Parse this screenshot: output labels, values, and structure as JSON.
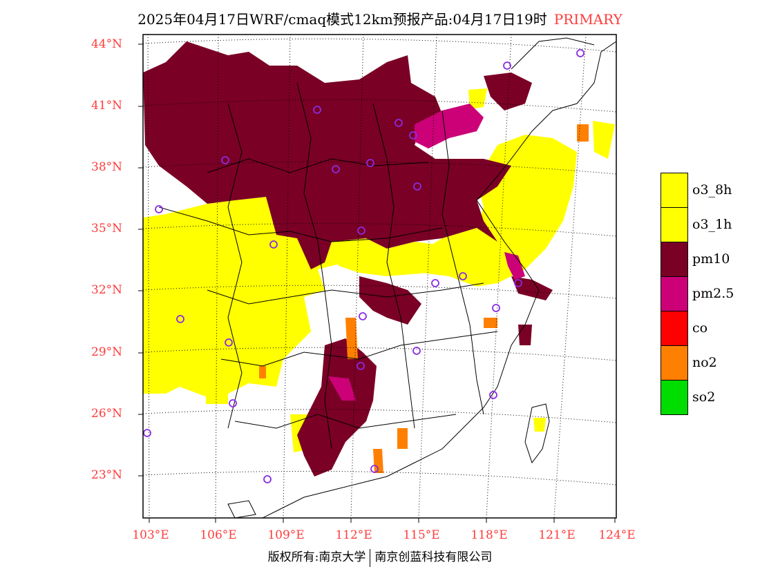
{
  "title": "2025年04月17日WRF/cmaq模式12km预报产品:04月17日19时",
  "title_tag": "PRIMARY",
  "colors": {
    "label_red": "#ff3b3b",
    "o3_8h": "#ffff00",
    "o3_1h": "#ffff00",
    "pm10": "#7a0026",
    "pm2_5": "#cc0077",
    "co": "#ff0000",
    "no2": "#ff8000",
    "so2": "#00dd00",
    "station_marker": "#8a2be2"
  },
  "lat_labels": [
    "44°N",
    "41°N",
    "38°N",
    "35°N",
    "32°N",
    "29°N",
    "26°N",
    "23°N"
  ],
  "lon_labels": [
    "103°E",
    "106°E",
    "109°E",
    "112°E",
    "115°E",
    "118°E",
    "121°E",
    "124°E"
  ],
  "legend": [
    {
      "label": "o3_8h",
      "color": "#ffff00"
    },
    {
      "label": "o3_1h",
      "color": "#ffff00"
    },
    {
      "label": "pm10",
      "color": "#7a0026"
    },
    {
      "label": "pm2.5",
      "color": "#cc0077"
    },
    {
      "label": "co",
      "color": "#ff0000"
    },
    {
      "label": "no2",
      "color": "#ff8000"
    },
    {
      "label": "so2",
      "color": "#00dd00"
    }
  ],
  "footer_left": "版权所有:南京大学",
  "footer_right": "南京创蓝科技有限公司"
}
